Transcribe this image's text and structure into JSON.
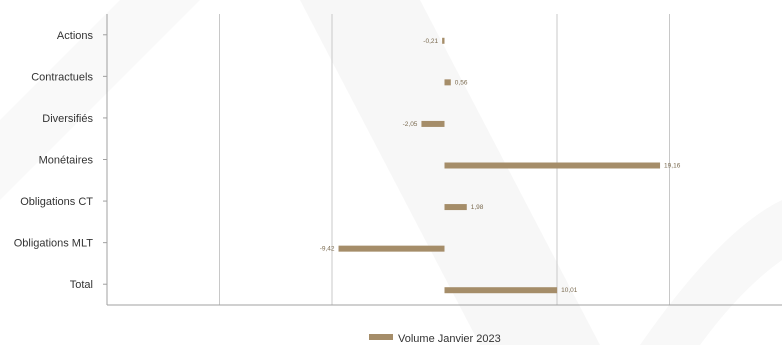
{
  "chart_data": {
    "type": "bar",
    "orientation": "horizontal",
    "categories": [
      "Actions",
      "Contractuels",
      "Diversifiés",
      "Monétaires",
      "Obligations CT",
      "Obligations MLT",
      "Total"
    ],
    "series": [
      {
        "name": "Volume Janvier 2023",
        "values": [
          -0.21,
          0.56,
          -2.05,
          19.16,
          1.98,
          -9.42,
          10.01
        ],
        "value_labels": [
          "-0,21",
          "0,56",
          "-2,05",
          "19,16",
          "1,98",
          "-9,42",
          "10,01"
        ]
      }
    ],
    "xlim": [
      -30,
      30
    ],
    "grid": true,
    "legend_position": "bottom",
    "colors": {
      "bar": "#a58d69",
      "grid": "#c8c8c8",
      "axis": "#a0a0a0"
    }
  }
}
